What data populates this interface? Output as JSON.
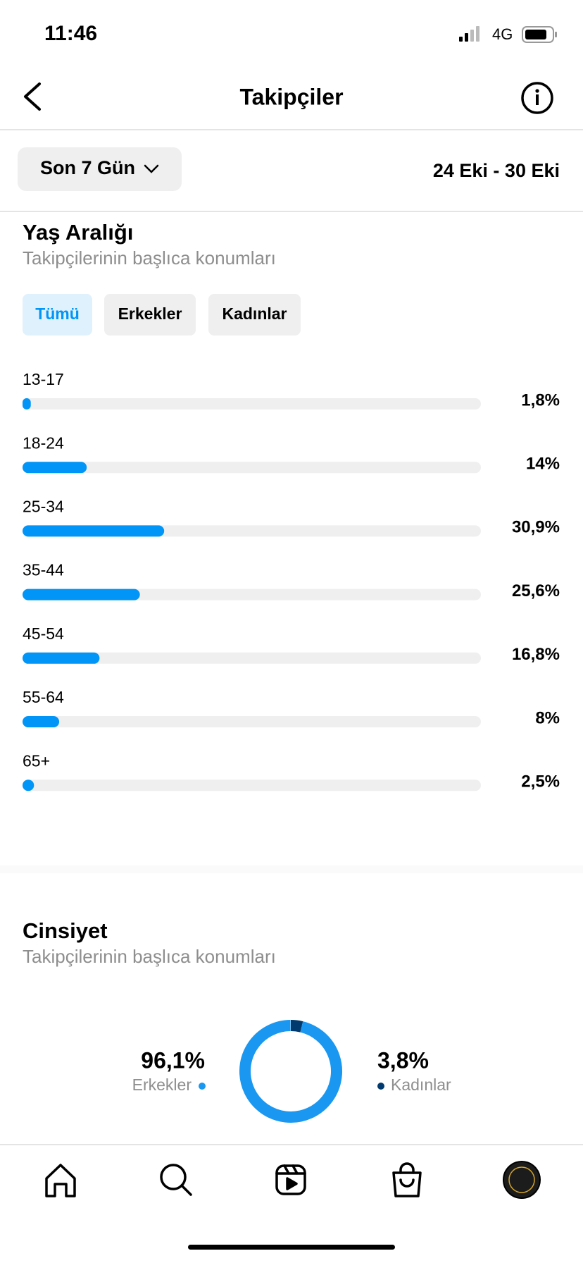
{
  "status_bar": {
    "time": "11:46",
    "network": "4G"
  },
  "header": {
    "title": "Takipçiler"
  },
  "filter": {
    "period": "Son 7 Gün",
    "date_range": "24 Eki - 30 Eki"
  },
  "age_range": {
    "type": "bar",
    "title": "Yaş Aralığı",
    "subtitle": "Takipçilerinin başlıca konumları",
    "tabs": [
      "Tümü",
      "Erkekler",
      "Kadınlar"
    ],
    "categories": [
      "13-17",
      "18-24",
      "25-34",
      "35-44",
      "45-54",
      "55-64",
      "65+"
    ],
    "values": [
      1.8,
      14,
      30.9,
      25.6,
      16.8,
      8,
      2.5
    ],
    "value_labels": [
      "1,8%",
      "14%",
      "30,9%",
      "25,6%",
      "16,8%",
      "8%",
      "2,5%"
    ],
    "xlim": [
      0,
      100
    ],
    "color": "#0095f6"
  },
  "gender": {
    "type": "donut",
    "title": "Cinsiyet",
    "subtitle": "Takipçilerinin başlıca konumları",
    "categories": [
      "Erkekler",
      "Kadınlar"
    ],
    "values": [
      96.1,
      3.8
    ],
    "value_labels": [
      "96,1%",
      "3,8%"
    ],
    "colors": [
      "#1a97f0",
      "#003a6e"
    ]
  }
}
